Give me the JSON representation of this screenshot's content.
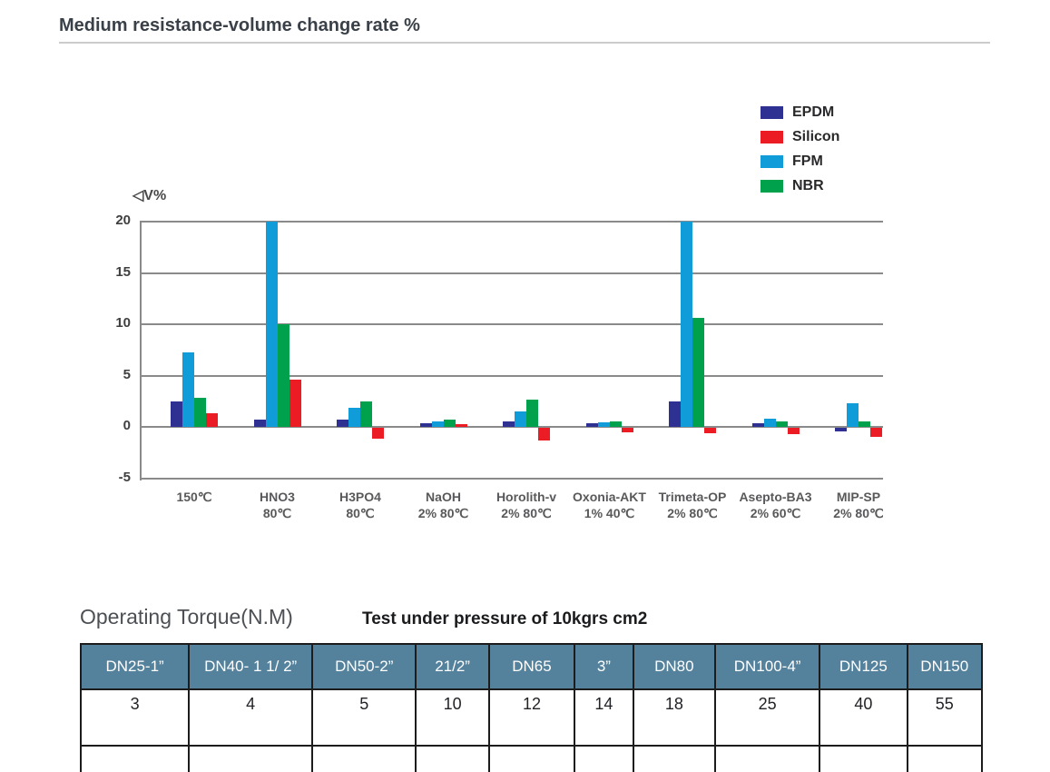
{
  "page": {
    "title": "Medium resistance-volume change rate %"
  },
  "chart": {
    "ylabel": "◁V%",
    "legend": [
      {
        "label": "EPDM",
        "color": "#2e3192"
      },
      {
        "label": "Silicon",
        "color": "#ec1c24"
      },
      {
        "label": "FPM",
        "color": "#109cd8"
      },
      {
        "label": "NBR",
        "color": "#00a14d"
      }
    ]
  },
  "chart_data": {
    "type": "bar",
    "title": "Medium resistance-volume change rate %",
    "ylabel": "◁V%",
    "ylim": [
      -5,
      20
    ],
    "yticks": [
      20,
      15,
      10,
      5,
      0,
      -5
    ],
    "grid": true,
    "legend_position": "top-right",
    "legend_order": [
      "EPDM",
      "Silicon",
      "FPM",
      "NBR"
    ],
    "categories": [
      "150℃",
      "HNO3 80℃",
      "H3PO4 80℃",
      "NaOH 2% 80℃",
      "Horolith-v 2% 80℃",
      "Oxonia-AKT 1% 40℃",
      "Trimeta-OP 2% 80℃",
      "Asepto-BA3 2% 60℃",
      "MIP-SP 2% 80℃"
    ],
    "category_lines": [
      [
        "150℃",
        ""
      ],
      [
        "HNO3",
        "80℃"
      ],
      [
        "H3PO4",
        "80℃"
      ],
      [
        "NaOH",
        "2% 80℃"
      ],
      [
        "Horolith-v",
        "2% 80℃"
      ],
      [
        "Oxonia-AKT",
        "1% 40℃"
      ],
      [
        "Trimeta-OP",
        "2% 80℃"
      ],
      [
        "Asepto-BA3",
        "2% 60℃"
      ],
      [
        "MIP-SP",
        "2% 80℃"
      ]
    ],
    "series": [
      {
        "name": "EPDM",
        "color": "#2e3192",
        "values": [
          2.5,
          0.7,
          0.7,
          0.4,
          0.55,
          0.35,
          2.5,
          0.35,
          -0.3
        ]
      },
      {
        "name": "FPM",
        "color": "#109cd8",
        "values": [
          7.3,
          20,
          1.9,
          0.55,
          1.5,
          0.5,
          20,
          0.85,
          2.3
        ]
      },
      {
        "name": "NBR",
        "color": "#00a14d",
        "values": [
          2.9,
          10,
          2.5,
          0.7,
          2.7,
          0.6,
          10.6,
          0.55,
          0.6
        ]
      },
      {
        "name": "Silicon",
        "color": "#ec1c24",
        "values": [
          1.4,
          4.6,
          -1.0,
          0.3,
          -1.2,
          -0.4,
          -0.5,
          -0.6,
          -0.85
        ]
      }
    ]
  },
  "torque": {
    "title": "Operating Torque(N.M)",
    "subtitle": "Test under pressure of 10kgrs cm2",
    "columns": [
      "DN25-1”",
      "DN40- 1 1/ 2”",
      "DN50-2”",
      "21/2”",
      "DN65",
      "3”",
      "DN80",
      "DN100-4”",
      "DN125",
      "DN150"
    ],
    "values": [
      "3",
      "4",
      "5",
      "10",
      "12",
      "14",
      "18",
      "25",
      "40",
      "55"
    ]
  }
}
